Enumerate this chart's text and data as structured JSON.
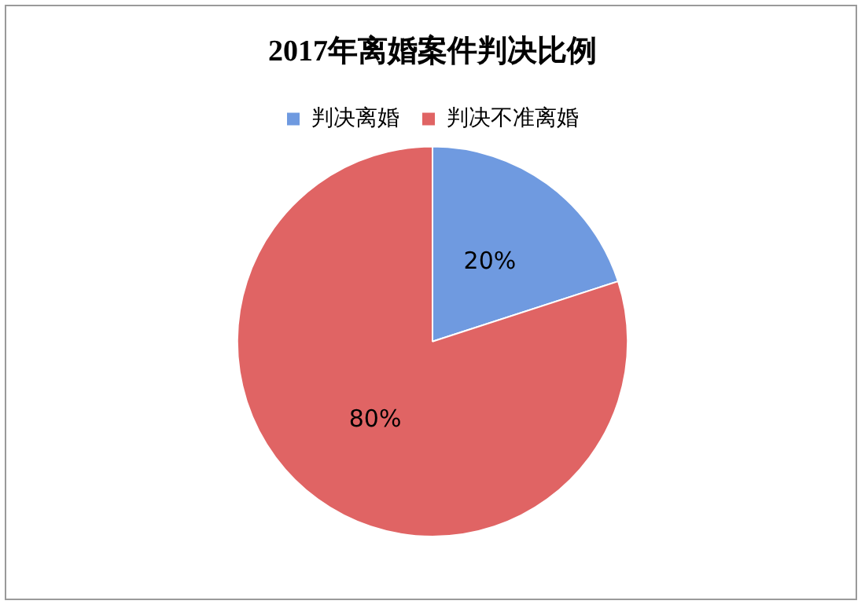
{
  "chart_data": {
    "type": "pie",
    "title": "2017年离婚案件判决比例",
    "categories": [
      "判决离婚",
      "判决不准离婚"
    ],
    "values": [
      20,
      80
    ],
    "value_labels": [
      "20%",
      "80%"
    ],
    "colors": [
      "#6f9ae0",
      "#e06464"
    ],
    "legend": "top"
  }
}
